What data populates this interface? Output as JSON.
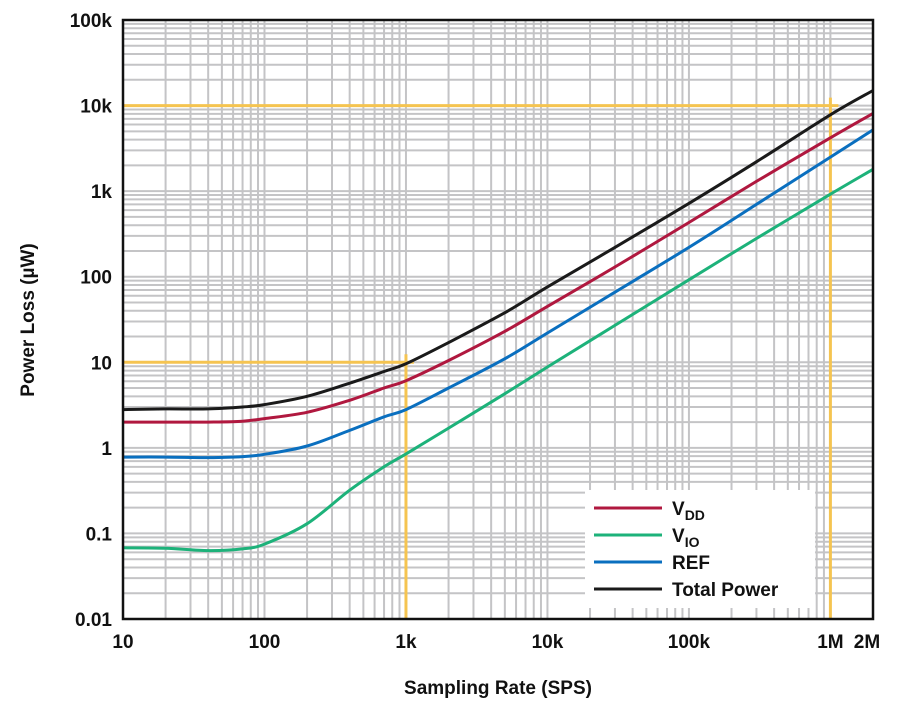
{
  "chart_data": {
    "type": "line",
    "title": "",
    "xlabel": "Sampling Rate (SPS)",
    "ylabel": "Power Loss (µW)",
    "xscale": "log",
    "yscale": "log",
    "xlim": [
      10,
      2000000
    ],
    "ylim": [
      0.01,
      100000
    ],
    "grid": true,
    "x_ticks": [
      {
        "value": 10,
        "label": "10"
      },
      {
        "value": 100,
        "label": "100"
      },
      {
        "value": 1000,
        "label": "1k"
      },
      {
        "value": 10000,
        "label": "10k"
      },
      {
        "value": 100000,
        "label": "100k"
      },
      {
        "value": 1000000,
        "label": "1M"
      },
      {
        "value": 2000000,
        "label": "2M"
      }
    ],
    "y_ticks": [
      {
        "value": 0.01,
        "label": "0.01"
      },
      {
        "value": 0.1,
        "label": "0.1"
      },
      {
        "value": 1,
        "label": "1"
      },
      {
        "value": 10,
        "label": "10"
      },
      {
        "value": 100,
        "label": "100"
      },
      {
        "value": 1000,
        "label": "1k"
      },
      {
        "value": 10000,
        "label": "10k"
      },
      {
        "value": 100000,
        "label": "100k"
      }
    ],
    "legend_position": "bottom-right",
    "x": [
      10,
      20,
      40,
      70,
      100,
      200,
      400,
      700,
      1000,
      2000,
      5000,
      10000,
      30000,
      100000,
      300000,
      1000000,
      2000000
    ],
    "series": [
      {
        "name": "VDD",
        "label_main": "V",
        "label_sub": "DD",
        "color": "#b0183f",
        "values": [
          2.0,
          2.0,
          2.0,
          2.05,
          2.2,
          2.6,
          3.6,
          5.0,
          6.1,
          10.5,
          23,
          45,
          130,
          430,
          1300,
          4200,
          8100
        ]
      },
      {
        "name": "VIO",
        "label_main": "V",
        "label_sub": "IO",
        "color": "#1db27a",
        "values": [
          0.068,
          0.067,
          0.063,
          0.066,
          0.075,
          0.13,
          0.32,
          0.6,
          0.85,
          1.7,
          4.3,
          8.8,
          27,
          92,
          280,
          920,
          1800
        ]
      },
      {
        "name": "REF",
        "label_main": "REF",
        "label_sub": "",
        "color": "#0a6fbf",
        "values": [
          0.78,
          0.78,
          0.77,
          0.79,
          0.84,
          1.05,
          1.6,
          2.3,
          2.8,
          5.0,
          11,
          22,
          66,
          220,
          700,
          2500,
          5200
        ]
      },
      {
        "name": "Total Power",
        "label_main": "Total Power",
        "label_sub": "",
        "color": "#1a1a1a",
        "values": [
          2.8,
          2.85,
          2.85,
          3.0,
          3.2,
          4.0,
          5.7,
          7.8,
          9.6,
          17,
          38,
          76,
          220,
          720,
          2200,
          7800,
          15000
        ]
      }
    ],
    "annotations": [
      {
        "type": "reference-lines",
        "color": "#f5c451",
        "x": 1000,
        "y": 10
      },
      {
        "type": "reference-lines",
        "color": "#f5c451",
        "x": 1000000,
        "y": 10000
      }
    ]
  }
}
